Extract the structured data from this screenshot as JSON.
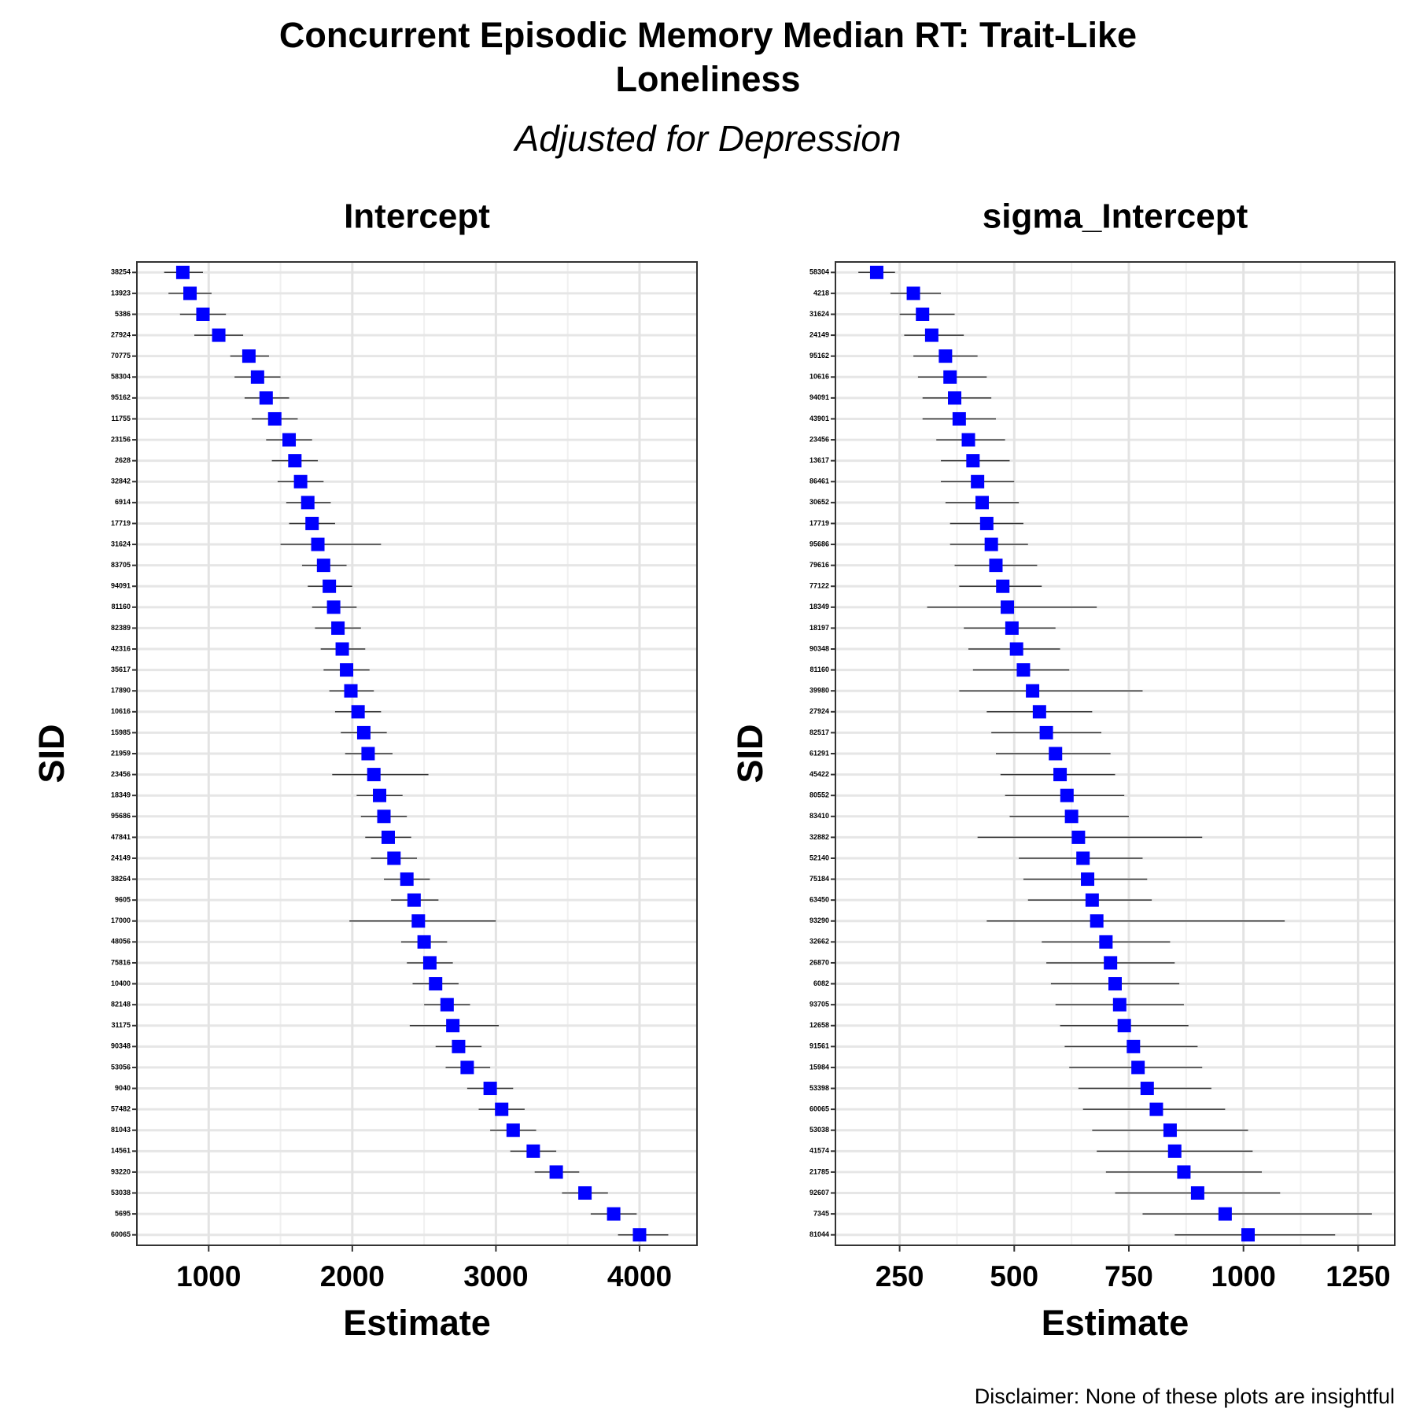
{
  "title": "Concurrent Episodic Memory Median RT: Trait-Like Loneliness",
  "subtitle": "Adjusted for Depression",
  "caption": "Disclaimer: None of these plots are insightful",
  "chart_data": [
    {
      "type": "errorbar",
      "title": "Intercept",
      "x_label": "Estimate",
      "y_label": "SID",
      "color": "#0000ff",
      "grid": true,
      "xlim": [
        500,
        4400
      ],
      "xticks": [
        1000,
        2000,
        3000,
        4000
      ],
      "categories": [
        "38254",
        "13923",
        "5386",
        "27924",
        "70775",
        "58304",
        "95162",
        "11755",
        "23156",
        "2628",
        "32842",
        "6914",
        "17719",
        "31624",
        "83705",
        "94091",
        "81160",
        "82389",
        "42316",
        "35617",
        "17890",
        "10616",
        "15985",
        "21959",
        "23456",
        "18349",
        "95686",
        "47841",
        "24149",
        "38264",
        "9605",
        "17000",
        "48056",
        "75816",
        "10400",
        "82148",
        "31175",
        "90348",
        "53056",
        "9040",
        "57482",
        "81043",
        "14561",
        "93220",
        "53038",
        "5695",
        "60065"
      ],
      "values": [
        820,
        870,
        960,
        1070,
        1280,
        1340,
        1400,
        1460,
        1560,
        1600,
        1640,
        1690,
        1720,
        1760,
        1800,
        1840,
        1870,
        1900,
        1930,
        1960,
        1990,
        2040,
        2080,
        2110,
        2150,
        2190,
        2220,
        2250,
        2290,
        2380,
        2430,
        2460,
        2500,
        2540,
        2580,
        2660,
        2700,
        2740,
        2800,
        2960,
        3040,
        3120,
        3260,
        3420,
        3620,
        3820,
        4000
      ],
      "lower": [
        690,
        720,
        800,
        900,
        1150,
        1180,
        1250,
        1300,
        1400,
        1440,
        1480,
        1540,
        1560,
        1500,
        1650,
        1690,
        1720,
        1740,
        1780,
        1800,
        1840,
        1880,
        1920,
        1950,
        1860,
        2030,
        2060,
        2090,
        2130,
        2220,
        2270,
        1980,
        2340,
        2380,
        2420,
        2500,
        2400,
        2580,
        2650,
        2800,
        2880,
        2960,
        3100,
        3270,
        3460,
        3660,
        3850
      ],
      "upper": [
        960,
        1020,
        1120,
        1240,
        1420,
        1500,
        1560,
        1620,
        1720,
        1760,
        1800,
        1850,
        1880,
        2200,
        1960,
        2000,
        2030,
        2060,
        2090,
        2120,
        2150,
        2200,
        2240,
        2280,
        2530,
        2350,
        2380,
        2410,
        2450,
        2540,
        2600,
        3000,
        2660,
        2700,
        2740,
        2820,
        3020,
        2900,
        2960,
        3120,
        3200,
        3280,
        3420,
        3580,
        3780,
        3980,
        4200
      ]
    },
    {
      "type": "errorbar",
      "title": "sigma_Intercept",
      "x_label": "Estimate",
      "y_label": "SID",
      "color": "#0000ff",
      "grid": true,
      "xlim": [
        110,
        1330
      ],
      "xticks": [
        250,
        500,
        750,
        1000,
        1250
      ],
      "categories": [
        "58304",
        "4218",
        "31624",
        "24149",
        "95162",
        "10616",
        "94091",
        "43901",
        "23456",
        "13617",
        "86461",
        "30652",
        "17719",
        "95686",
        "79616",
        "77122",
        "18349",
        "18197",
        "90348",
        "81160",
        "39980",
        "27924",
        "82517",
        "61291",
        "45422",
        "80552",
        "83410",
        "32882",
        "52140",
        "75184",
        "63450",
        "93290",
        "32662",
        "26870",
        "6082",
        "93705",
        "12658",
        "91561",
        "15984",
        "53398",
        "60065",
        "53038",
        "41574",
        "21785",
        "92607",
        "7345",
        "81044"
      ],
      "values": [
        200,
        280,
        300,
        320,
        350,
        360,
        370,
        380,
        400,
        410,
        420,
        430,
        440,
        450,
        460,
        475,
        485,
        495,
        505,
        520,
        540,
        555,
        570,
        590,
        600,
        615,
        625,
        640,
        650,
        660,
        670,
        680,
        700,
        710,
        720,
        730,
        740,
        760,
        770,
        790,
        810,
        840,
        850,
        870,
        900,
        960,
        1010
      ],
      "lower": [
        160,
        230,
        250,
        260,
        280,
        290,
        300,
        300,
        330,
        340,
        340,
        350,
        360,
        360,
        370,
        380,
        310,
        390,
        400,
        410,
        380,
        440,
        450,
        460,
        470,
        480,
        490,
        420,
        510,
        520,
        530,
        440,
        560,
        570,
        580,
        590,
        600,
        610,
        620,
        640,
        650,
        670,
        680,
        700,
        720,
        780,
        850
      ],
      "upper": [
        240,
        340,
        370,
        390,
        420,
        440,
        450,
        460,
        480,
        490,
        500,
        510,
        520,
        530,
        550,
        560,
        680,
        590,
        600,
        620,
        780,
        670,
        690,
        710,
        720,
        740,
        750,
        910,
        780,
        790,
        800,
        1090,
        840,
        850,
        860,
        870,
        880,
        900,
        910,
        930,
        960,
        1010,
        1020,
        1040,
        1080,
        1280,
        1200
      ]
    }
  ]
}
